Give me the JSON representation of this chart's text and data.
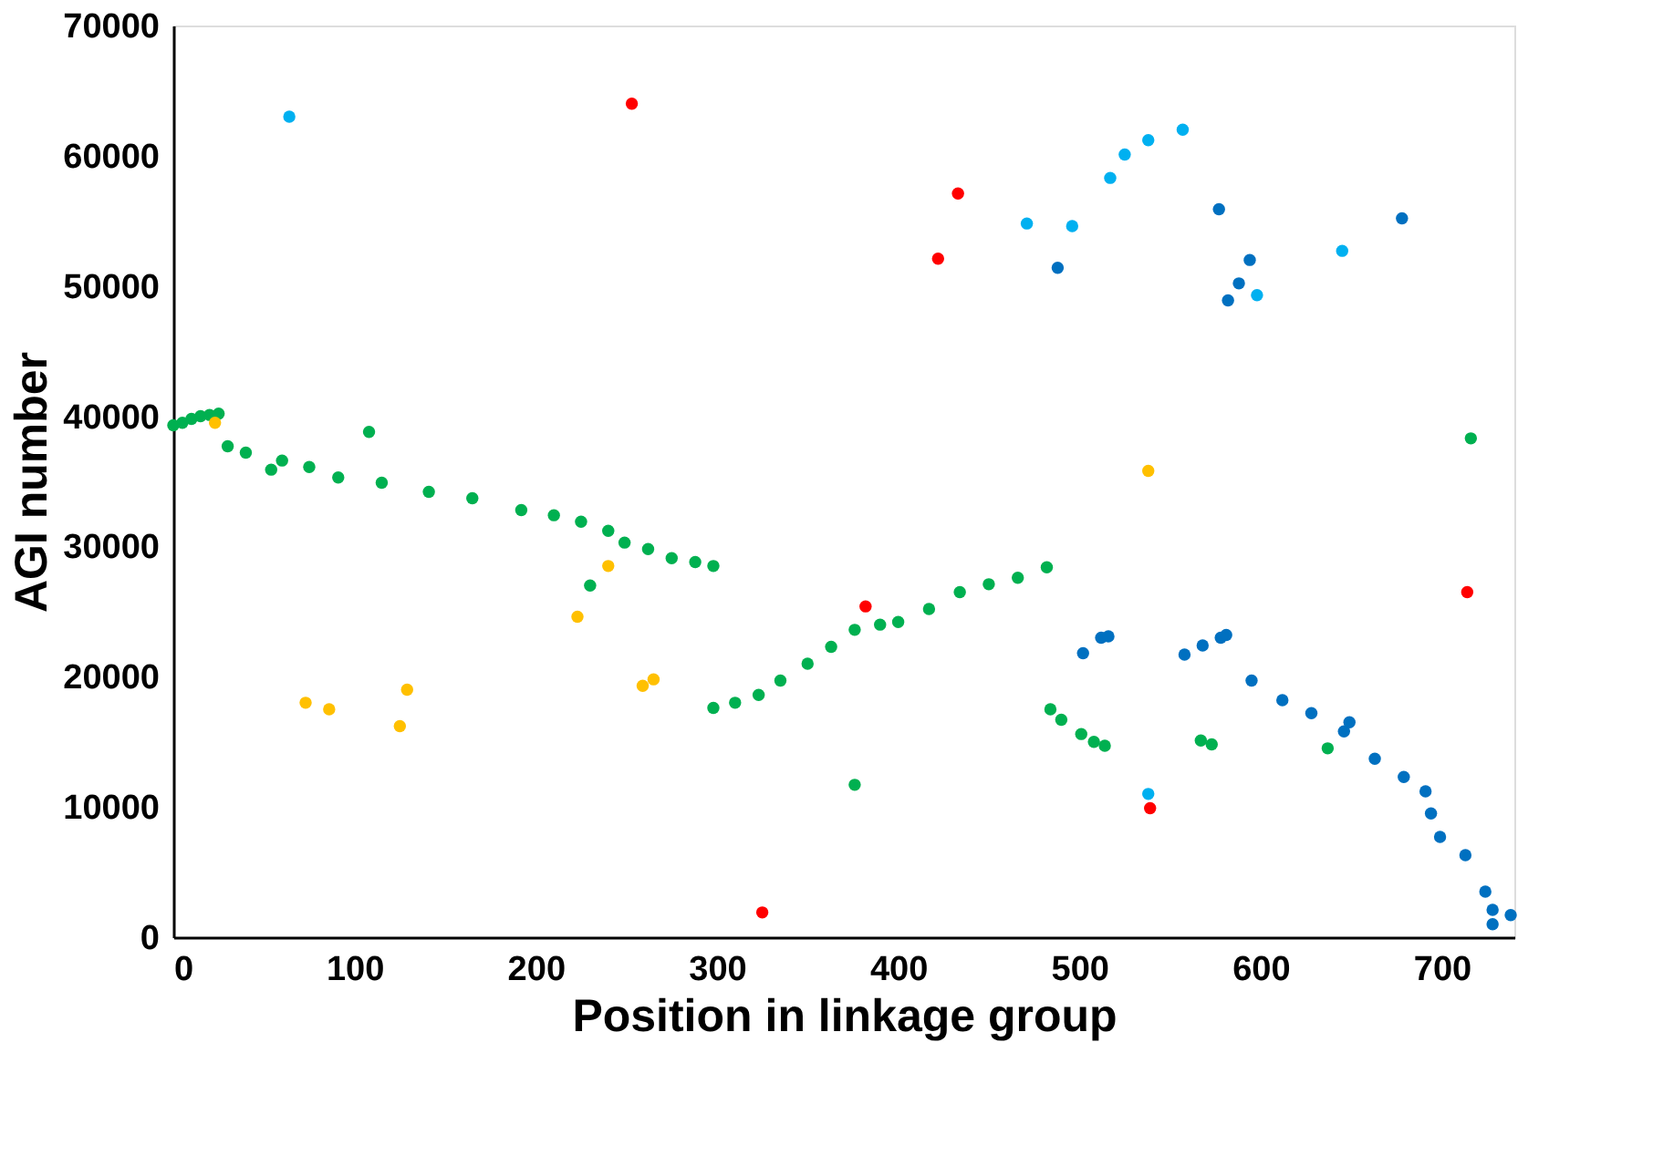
{
  "chart_data": {
    "type": "scatter",
    "xlabel": "Position in linkage group",
    "ylabel": "AGI number",
    "xlim": [
      0,
      740
    ],
    "xticks": [
      0,
      100,
      200,
      300,
      400,
      500,
      600,
      700
    ],
    "ylim": [
      0,
      70000
    ],
    "yticks": [
      0,
      10000,
      20000,
      30000,
      40000,
      50000,
      60000,
      70000
    ],
    "grid": false,
    "marker": "circle",
    "series": [
      {
        "color": "#00b050",
        "x": [
          0,
          5,
          10,
          15,
          20,
          25,
          30,
          40,
          54,
          60,
          75,
          91,
          108,
          115,
          141,
          165,
          192,
          210,
          225,
          230,
          240,
          249,
          262,
          275,
          288,
          298,
          298,
          310,
          323,
          335,
          350,
          363,
          376,
          376,
          390,
          400,
          417,
          434,
          450,
          466,
          482,
          484,
          490,
          501,
          508,
          514,
          567,
          573,
          637,
          716
        ],
        "values": [
          39300,
          39500,
          39800,
          40000,
          40100,
          40200,
          37700,
          37200,
          35900,
          36600,
          36100,
          35300,
          38800,
          34900,
          34200,
          33700,
          32800,
          32400,
          31900,
          27000,
          31200,
          30300,
          29800,
          29100,
          28800,
          28500,
          17600,
          18000,
          18600,
          19700,
          21000,
          22300,
          23600,
          11700,
          24000,
          24200,
          25200,
          26500,
          27100,
          27600,
          28400,
          17500,
          16700,
          15600,
          15000,
          14700,
          15100,
          14800,
          14500,
          38300
        ]
      },
      {
        "color": "#ffc000",
        "x": [
          23,
          73,
          86,
          125,
          129,
          223,
          240,
          259,
          265,
          538
        ],
        "values": [
          39500,
          18000,
          17500,
          16200,
          19000,
          24600,
          28500,
          19300,
          19800,
          35800
        ]
      },
      {
        "color": "#ff0000",
        "x": [
          253,
          325,
          382,
          422,
          433,
          539,
          714
        ],
        "values": [
          64000,
          1900,
          25400,
          52100,
          57100,
          9900,
          26500
        ]
      },
      {
        "color": "#00b0f0",
        "x": [
          64,
          471,
          496,
          517,
          525,
          538,
          557,
          538,
          598,
          645
        ],
        "values": [
          63000,
          54800,
          54600,
          58300,
          60100,
          61200,
          62000,
          11000,
          49300,
          52700
        ]
      },
      {
        "color": "#0070c0",
        "x": [
          488,
          502,
          512,
          516,
          558,
          568,
          578,
          581,
          577,
          582,
          588,
          594,
          595,
          612,
          628,
          646,
          649,
          663,
          679,
          691,
          694,
          699,
          713,
          724,
          728,
          728,
          738,
          678
        ],
        "values": [
          51400,
          21800,
          23000,
          23100,
          21700,
          22400,
          23000,
          23200,
          55900,
          48900,
          50200,
          52000,
          19700,
          18200,
          17200,
          15800,
          16500,
          13700,
          12300,
          11200,
          9500,
          7700,
          6300,
          3500,
          2100,
          1000,
          1700,
          55200
        ]
      }
    ]
  }
}
